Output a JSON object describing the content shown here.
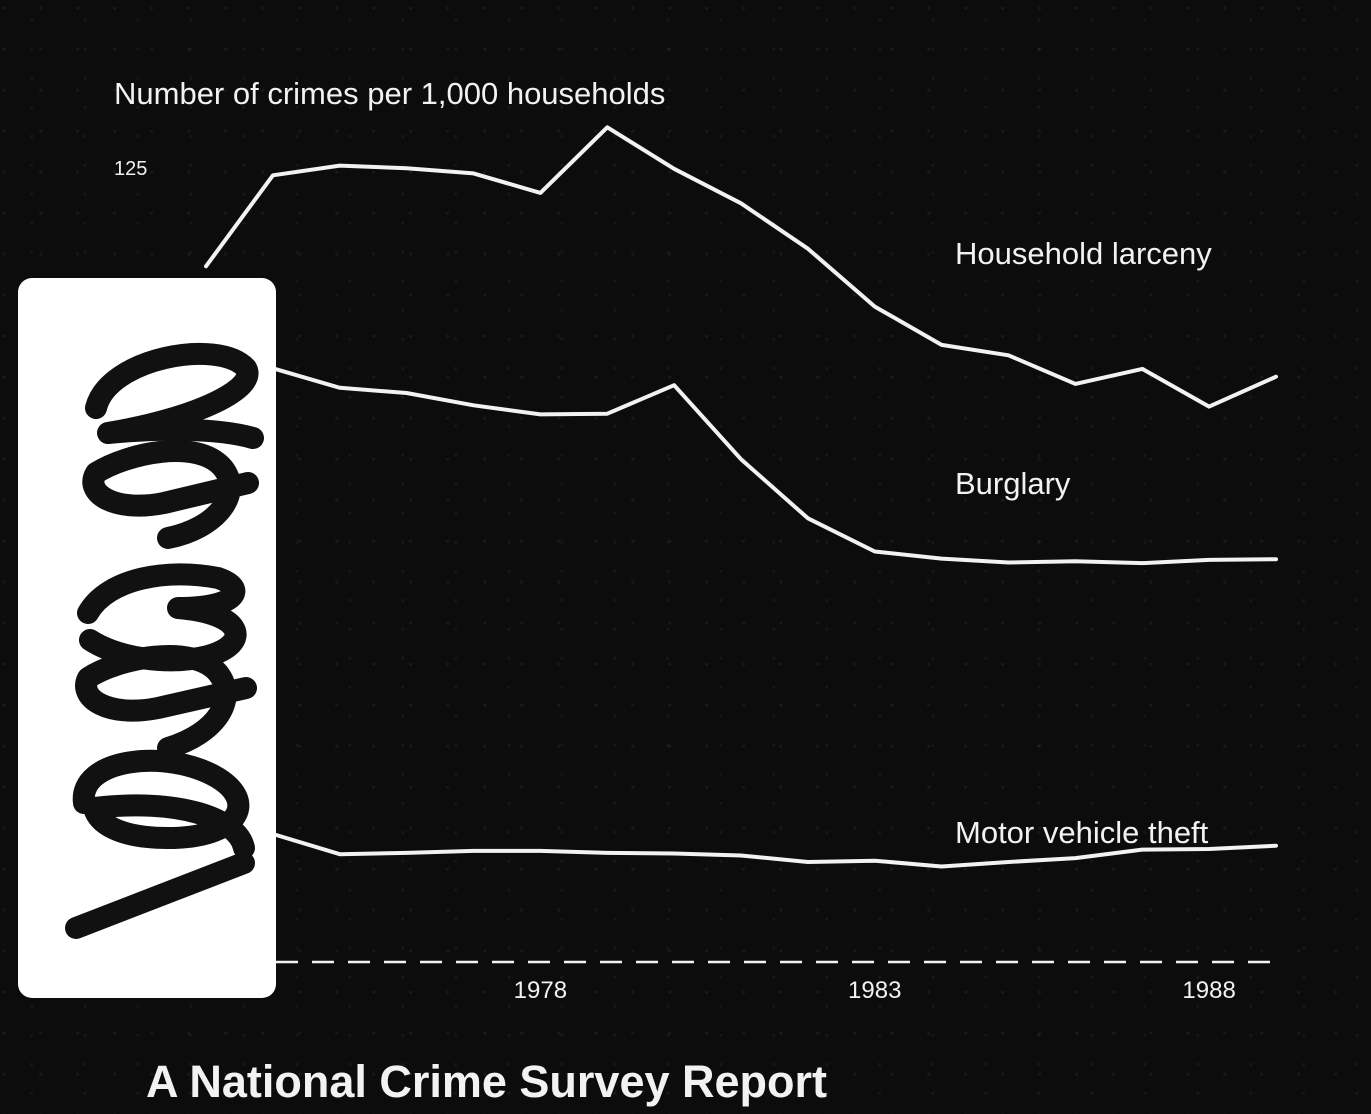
{
  "report_title": "A National Crime Survey Report",
  "stamp": {
    "handwritten_number": "129392"
  },
  "chart_data": {
    "type": "line",
    "title": "",
    "ylabel": "Number of crimes per 1,000 households",
    "y_tick_labels": [
      "125"
    ],
    "x_tick_labels": [
      "1978",
      "1983",
      "1988"
    ],
    "x": [
      1973,
      1974,
      1975,
      1976,
      1977,
      1978,
      1979,
      1980,
      1981,
      1982,
      1983,
      1984,
      1985,
      1986,
      1987,
      1988,
      1989
    ],
    "ylim": [
      0,
      125
    ],
    "series": [
      {
        "name": "Household larceny",
        "values": [
          107.1,
          121.1,
          122.6,
          122.2,
          121.4,
          118.4,
          128.5,
          122.1,
          116.8,
          109.8,
          100.9,
          95.0,
          93.4,
          89.0,
          91.3,
          85.5,
          90.1
        ]
      },
      {
        "name": "Burglary",
        "values": [
          91.7,
          91.4,
          88.4,
          87.6,
          85.7,
          84.3,
          84.4,
          88.8,
          77.4,
          68.3,
          63.2,
          62.1,
          61.5,
          61.7,
          61.4,
          61.9,
          62.0
        ]
      },
      {
        "name": "Motor vehicle theft",
        "values": [
          19.1,
          19.7,
          16.6,
          16.8,
          17.1,
          17.1,
          16.8,
          16.7,
          16.4,
          15.4,
          15.6,
          14.7,
          15.4,
          16.0,
          17.3,
          17.4,
          17.9
        ]
      }
    ],
    "baseline": "dashed",
    "grid": false,
    "legend": "none",
    "colors": {
      "background": "#0c0c0c",
      "line": "#f2f2f2"
    }
  }
}
